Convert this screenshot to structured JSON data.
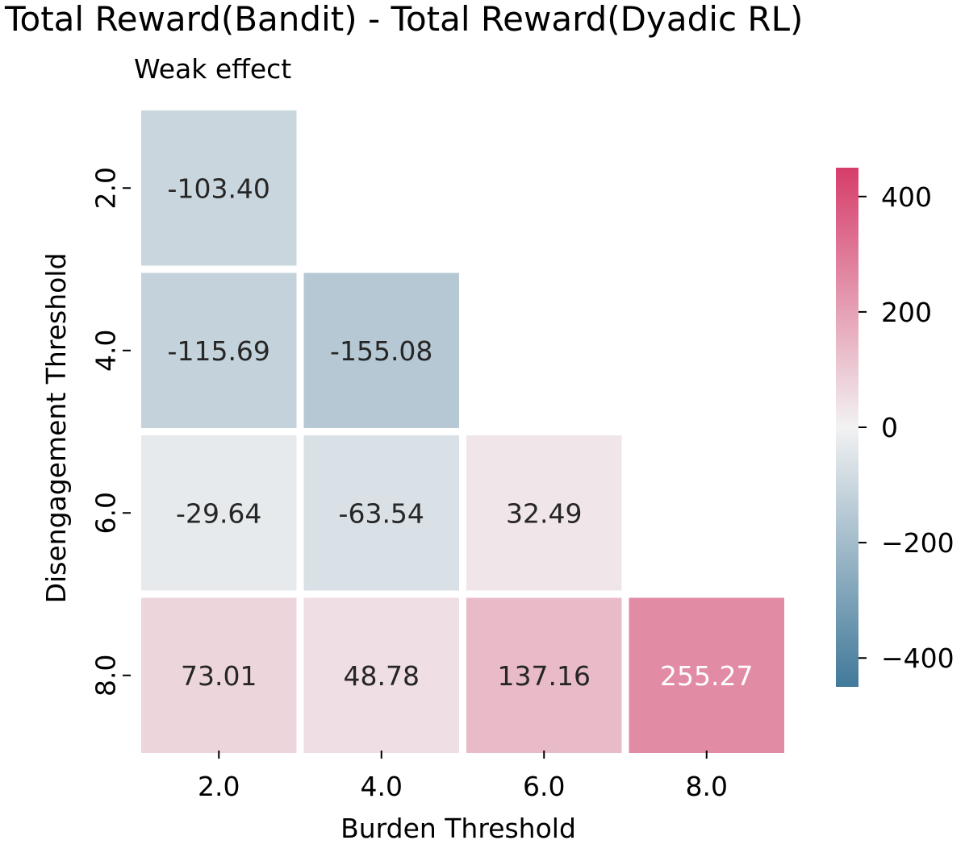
{
  "chart_data": {
    "type": "heatmap",
    "title": "Total Reward(Bandit) - Total Reward(Dyadic RL)",
    "subtitle": "Weak effect",
    "xlabel": "Burden Threshold",
    "ylabel": "Disengagement Threshold",
    "x_categories": [
      "2.0",
      "4.0",
      "6.0",
      "8.0"
    ],
    "y_categories": [
      "2.0",
      "4.0",
      "6.0",
      "8.0"
    ],
    "cells": [
      {
        "x": "2.0",
        "y": "2.0",
        "value": -103.4,
        "label": "-103.40"
      },
      {
        "x": "2.0",
        "y": "4.0",
        "value": -115.69,
        "label": "-115.69"
      },
      {
        "x": "4.0",
        "y": "4.0",
        "value": -155.08,
        "label": "-155.08"
      },
      {
        "x": "2.0",
        "y": "6.0",
        "value": -29.64,
        "label": "-29.64"
      },
      {
        "x": "4.0",
        "y": "6.0",
        "value": -63.54,
        "label": "-63.54"
      },
      {
        "x": "6.0",
        "y": "6.0",
        "value": 32.49,
        "label": "32.49"
      },
      {
        "x": "2.0",
        "y": "8.0",
        "value": 73.01,
        "label": "73.01"
      },
      {
        "x": "4.0",
        "y": "8.0",
        "value": 48.78,
        "label": "48.78"
      },
      {
        "x": "6.0",
        "y": "8.0",
        "value": 137.16,
        "label": "137.16"
      },
      {
        "x": "8.0",
        "y": "8.0",
        "value": 255.27,
        "label": "255.27"
      }
    ],
    "colorbar": {
      "range": [
        -450,
        450
      ],
      "ticks": [
        400,
        200,
        0,
        -200,
        -400
      ],
      "tick_labels": [
        "400",
        "200",
        "0",
        "−200",
        "−400"
      ],
      "colors": {
        "negative": "#41799a",
        "center": "#f2f2f2",
        "positive": "#d63d6b"
      }
    },
    "grid": false,
    "legend": "colorbar-right"
  }
}
